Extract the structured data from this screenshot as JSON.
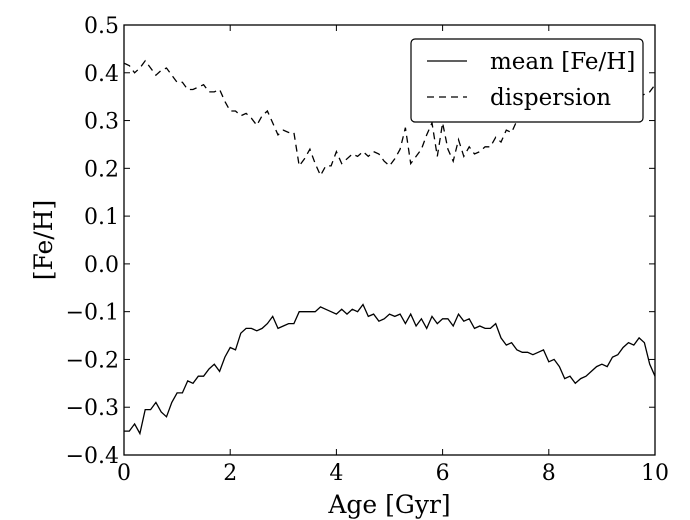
{
  "chart_data": {
    "type": "line",
    "title": "",
    "xlabel": "Age [Gyr]",
    "ylabel": "[Fe/H]",
    "xlim": [
      0,
      10
    ],
    "ylim": [
      -0.4,
      0.5
    ],
    "xticks": [
      0,
      2,
      4,
      6,
      8,
      10
    ],
    "xtick_labels": [
      "0",
      "2",
      "4",
      "6",
      "8",
      "10"
    ],
    "yticks": [
      -0.4,
      -0.3,
      -0.2,
      -0.1,
      0.0,
      0.1,
      0.2,
      0.3,
      0.4,
      0.5
    ],
    "ytick_labels": [
      "−0.4",
      "−0.3",
      "−0.2",
      "−0.1",
      "0.0",
      "0.1",
      "0.2",
      "0.3",
      "0.4",
      "0.5"
    ],
    "grid": false,
    "legend": {
      "position": "top-right"
    },
    "series": [
      {
        "name": "mean [Fe/H]",
        "style": "solid",
        "color": "#000000",
        "x": [
          0.0,
          0.1,
          0.2,
          0.3,
          0.4,
          0.5,
          0.6,
          0.7,
          0.8,
          0.9,
          1.0,
          1.1,
          1.2,
          1.3,
          1.4,
          1.5,
          1.6,
          1.7,
          1.8,
          1.9,
          2.0,
          2.1,
          2.2,
          2.3,
          2.4,
          2.5,
          2.6,
          2.7,
          2.8,
          2.9,
          3.0,
          3.1,
          3.2,
          3.3,
          3.4,
          3.5,
          3.6,
          3.7,
          3.8,
          3.9,
          4.0,
          4.1,
          4.2,
          4.3,
          4.4,
          4.5,
          4.6,
          4.7,
          4.8,
          4.9,
          5.0,
          5.1,
          5.2,
          5.3,
          5.4,
          5.5,
          5.6,
          5.7,
          5.8,
          5.9,
          6.0,
          6.1,
          6.2,
          6.3,
          6.4,
          6.5,
          6.6,
          6.7,
          6.8,
          6.9,
          7.0,
          7.1,
          7.2,
          7.3,
          7.4,
          7.5,
          7.6,
          7.7,
          7.8,
          7.9,
          8.0,
          8.1,
          8.2,
          8.3,
          8.4,
          8.5,
          8.6,
          8.7,
          8.8,
          8.9,
          9.0,
          9.1,
          9.2,
          9.3,
          9.4,
          9.5,
          9.6,
          9.7,
          9.8,
          9.9,
          10.0
        ],
        "y": [
          -0.35,
          -0.35,
          -0.335,
          -0.355,
          -0.305,
          -0.305,
          -0.29,
          -0.31,
          -0.32,
          -0.29,
          -0.27,
          -0.27,
          -0.245,
          -0.25,
          -0.235,
          -0.235,
          -0.22,
          -0.21,
          -0.225,
          -0.195,
          -0.175,
          -0.18,
          -0.145,
          -0.135,
          -0.135,
          -0.14,
          -0.135,
          -0.125,
          -0.11,
          -0.135,
          -0.13,
          -0.125,
          -0.125,
          -0.1,
          -0.1,
          -0.1,
          -0.1,
          -0.09,
          -0.095,
          -0.1,
          -0.105,
          -0.095,
          -0.105,
          -0.095,
          -0.1,
          -0.085,
          -0.11,
          -0.105,
          -0.12,
          -0.115,
          -0.105,
          -0.11,
          -0.105,
          -0.125,
          -0.105,
          -0.13,
          -0.115,
          -0.135,
          -0.11,
          -0.125,
          -0.115,
          -0.115,
          -0.13,
          -0.105,
          -0.12,
          -0.115,
          -0.135,
          -0.13,
          -0.135,
          -0.135,
          -0.125,
          -0.155,
          -0.17,
          -0.165,
          -0.18,
          -0.185,
          -0.185,
          -0.19,
          -0.185,
          -0.18,
          -0.205,
          -0.2,
          -0.215,
          -0.24,
          -0.235,
          -0.25,
          -0.24,
          -0.235,
          -0.225,
          -0.215,
          -0.21,
          -0.215,
          -0.195,
          -0.19,
          -0.175,
          -0.165,
          -0.17,
          -0.155,
          -0.165,
          -0.21,
          -0.235
        ]
      },
      {
        "name": "dispersion",
        "style": "dashed",
        "color": "#000000",
        "x": [
          0.0,
          0.1,
          0.2,
          0.3,
          0.4,
          0.5,
          0.6,
          0.7,
          0.8,
          0.9,
          1.0,
          1.1,
          1.2,
          1.3,
          1.4,
          1.5,
          1.6,
          1.7,
          1.8,
          1.9,
          2.0,
          2.1,
          2.2,
          2.3,
          2.4,
          2.5,
          2.6,
          2.7,
          2.8,
          2.9,
          3.0,
          3.1,
          3.2,
          3.3,
          3.4,
          3.5,
          3.6,
          3.7,
          3.8,
          3.9,
          4.0,
          4.1,
          4.2,
          4.3,
          4.4,
          4.5,
          4.6,
          4.7,
          4.8,
          4.9,
          5.0,
          5.1,
          5.2,
          5.3,
          5.4,
          5.5,
          5.6,
          5.7,
          5.8,
          5.9,
          6.0,
          6.1,
          6.2,
          6.3,
          6.4,
          6.5,
          6.6,
          6.7,
          6.8,
          6.9,
          7.0,
          7.1,
          7.2,
          7.3,
          7.4,
          7.5,
          7.6,
          7.7,
          7.8,
          7.9,
          8.0,
          8.1,
          8.2,
          8.3,
          8.4,
          8.5,
          8.6,
          8.7,
          8.8,
          8.9,
          9.0,
          9.1,
          9.2,
          9.3,
          9.4,
          9.5,
          9.6,
          9.7,
          9.8,
          9.9,
          10.0
        ],
        "y": [
          0.42,
          0.415,
          0.4,
          0.41,
          0.425,
          0.41,
          0.395,
          0.405,
          0.41,
          0.395,
          0.38,
          0.38,
          0.365,
          0.365,
          0.37,
          0.375,
          0.36,
          0.36,
          0.365,
          0.34,
          0.32,
          0.32,
          0.31,
          0.315,
          0.305,
          0.29,
          0.31,
          0.32,
          0.295,
          0.27,
          0.28,
          0.275,
          0.275,
          0.205,
          0.22,
          0.24,
          0.21,
          0.185,
          0.205,
          0.205,
          0.235,
          0.21,
          0.22,
          0.23,
          0.225,
          0.235,
          0.225,
          0.235,
          0.23,
          0.215,
          0.205,
          0.22,
          0.24,
          0.285,
          0.21,
          0.225,
          0.24,
          0.27,
          0.295,
          0.225,
          0.295,
          0.24,
          0.215,
          0.26,
          0.225,
          0.245,
          0.23,
          0.235,
          0.245,
          0.245,
          0.265,
          0.255,
          0.28,
          0.275,
          0.3,
          0.33,
          0.35,
          0.36,
          0.38,
          0.39,
          0.38,
          0.37,
          0.385,
          0.37,
          0.36,
          0.355,
          0.37,
          0.37,
          0.38,
          0.375,
          0.37,
          0.38,
          0.36,
          0.37,
          0.37,
          0.365,
          0.37,
          0.35,
          0.355,
          0.36,
          0.375
        ]
      }
    ]
  }
}
